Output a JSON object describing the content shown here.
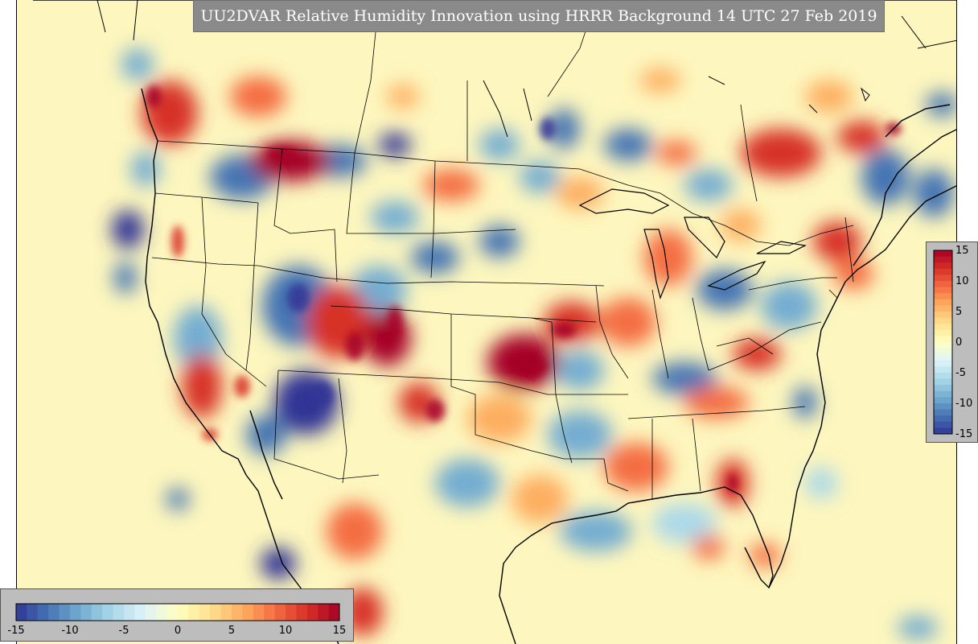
{
  "title": "UU2DVAR Relative Humidity Innovation using HRRR Background 14 UTC 27 Feb 2019",
  "colors": {
    "neutral": "#fdf6be",
    "palette": [
      "#313695",
      "#4575b4",
      "#74add1",
      "#abd9e9",
      "#e0f3f8",
      "#ffffbf",
      "#fee090",
      "#fdae61",
      "#f46d43",
      "#d73027",
      "#a50026"
    ]
  },
  "colorbar": {
    "range": [
      -15,
      15
    ],
    "vertical_ticks": [
      "15",
      "10",
      "5",
      "0",
      "-5",
      "-10",
      "-15"
    ],
    "horizontal_ticks": [
      "-15",
      "-10",
      "-5",
      "0",
      "5",
      "10",
      "15"
    ]
  }
}
